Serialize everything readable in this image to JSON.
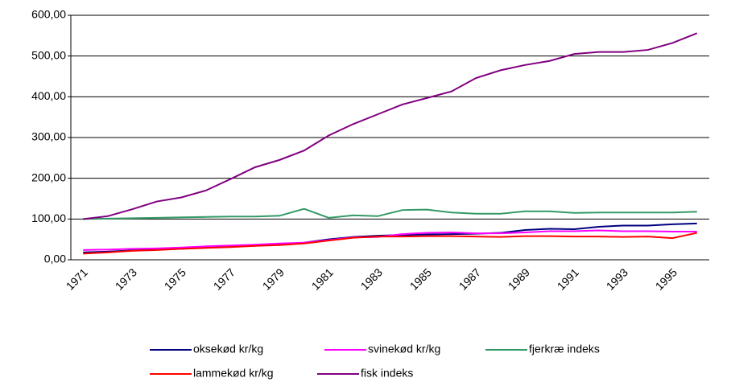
{
  "chart_data": {
    "type": "line",
    "categories": [
      "1971",
      null,
      "1973",
      null,
      "1975",
      null,
      "1977",
      null,
      "1979",
      null,
      "1981",
      null,
      "1983",
      null,
      "1985",
      null,
      "1987",
      null,
      "1989",
      null,
      "1991",
      null,
      "1993",
      null,
      "1995",
      null
    ],
    "series": [
      {
        "name": "oksekød kr/kg",
        "color": "#000080",
        "values": [
          18,
          20,
          23,
          25,
          27,
          30,
          32,
          35,
          38,
          42,
          50,
          56,
          59,
          61,
          62,
          63,
          64,
          66,
          73,
          76,
          75,
          81,
          84,
          84,
          87,
          89
        ]
      },
      {
        "name": "svinekød kr/kg",
        "color": "#ff00ff",
        "values": [
          24,
          25,
          27,
          28,
          30,
          33,
          35,
          37,
          40,
          42,
          48,
          55,
          56,
          63,
          66,
          67,
          65,
          65,
          67,
          70,
          70,
          72,
          70,
          70,
          69,
          69
        ]
      },
      {
        "name": "fjerkræ indeks",
        "color": "#339966",
        "values": [
          100,
          101,
          102,
          103,
          104,
          105,
          106,
          106,
          108,
          125,
          103,
          109,
          107,
          122,
          123,
          116,
          113,
          113,
          119,
          119,
          115,
          116,
          116,
          116,
          116,
          118
        ]
      },
      {
        "name": "lammekød kr/kg",
        "color": "#ff0000",
        "values": [
          15,
          18,
          22,
          24,
          27,
          29,
          31,
          34,
          36,
          40,
          47,
          54,
          57,
          57,
          58,
          58,
          57,
          56,
          58,
          58,
          57,
          57,
          56,
          57,
          53,
          66
        ]
      },
      {
        "name": "fisk indeks",
        "color": "#800080",
        "values": [
          100,
          107,
          124,
          143,
          153,
          170,
          198,
          227,
          245,
          268,
          305,
          333,
          357,
          381,
          397,
          413,
          446,
          465,
          478,
          488,
          505,
          510,
          510,
          515,
          532,
          556
        ]
      }
    ],
    "ylim": [
      0,
      600
    ],
    "yticks": [
      {
        "value": 0,
        "label": "0,00"
      },
      {
        "value": 100,
        "label": "100,00"
      },
      {
        "value": 200,
        "label": "200,00"
      },
      {
        "value": 300,
        "label": "300,00"
      },
      {
        "value": 400,
        "label": "400,00"
      },
      {
        "value": 500,
        "label": "500,00"
      },
      {
        "value": 600,
        "label": "600,00"
      }
    ],
    "grid": true
  }
}
